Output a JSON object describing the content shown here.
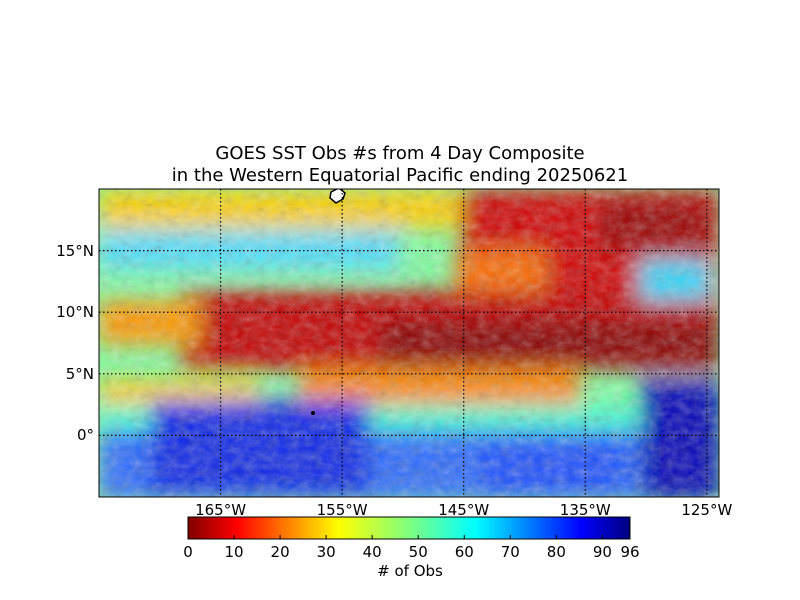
{
  "title": {
    "line1": "GOES SST Obs #s from 4 Day Composite",
    "line2": "in the Western Equatorial Pacific ending 20250621"
  },
  "map": {
    "lon_range": [
      -175,
      -124
    ],
    "lat_range": [
      -5,
      20
    ],
    "lat_ticks": [
      {
        "value": 15,
        "label": "15°N"
      },
      {
        "value": 10,
        "label": "10°N"
      },
      {
        "value": 5,
        "label": "5°N"
      },
      {
        "value": 0,
        "label": "0°"
      }
    ],
    "lon_ticks": [
      {
        "value": -165,
        "label": "165°W"
      },
      {
        "value": -155,
        "label": "155°W"
      },
      {
        "value": -145,
        "label": "145°W"
      },
      {
        "value": -135,
        "label": "135°W"
      },
      {
        "value": -125,
        "label": "125°W"
      }
    ],
    "gridlines": true,
    "colormap": "jet"
  },
  "colorbar": {
    "label": "# of Obs",
    "min": 0,
    "max": 96,
    "ticks": [
      {
        "value": 0,
        "label": "0"
      },
      {
        "value": 10,
        "label": "10"
      },
      {
        "value": 20,
        "label": "20"
      },
      {
        "value": 30,
        "label": "30"
      },
      {
        "value": 40,
        "label": "40"
      },
      {
        "value": 50,
        "label": "50"
      },
      {
        "value": 60,
        "label": "60"
      },
      {
        "value": 70,
        "label": "70"
      },
      {
        "value": 80,
        "label": "80"
      },
      {
        "value": 90,
        "label": "90"
      },
      {
        "value": 96,
        "label": "96"
      }
    ]
  }
}
